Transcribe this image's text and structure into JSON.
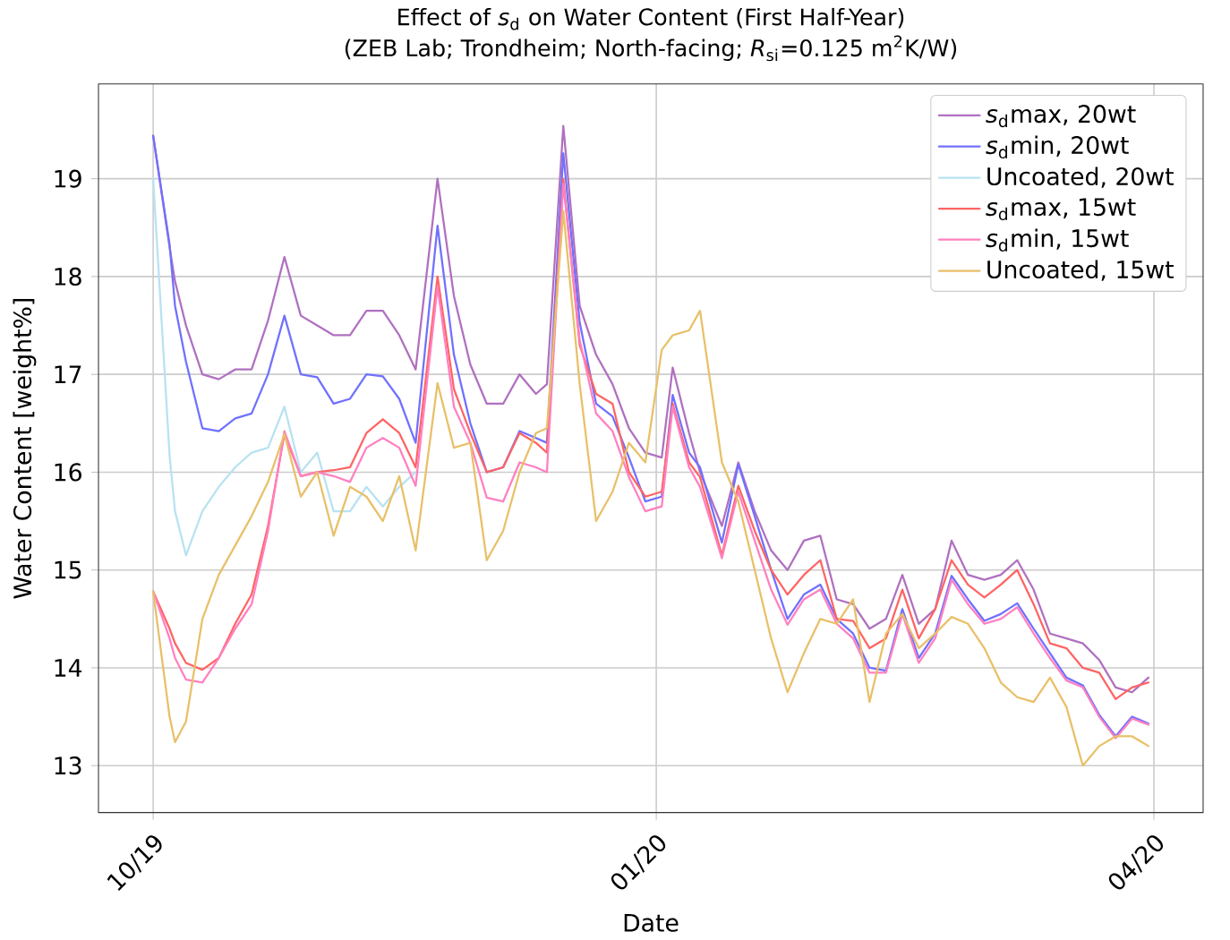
{
  "chart_data": {
    "type": "line",
    "title": "Effect of *s*$_{d}$ on Water Content (First Half-Year)",
    "subtitle": "(ZEB Lab; Trondheim; North-facing; *R*$_{si}$=0.125 m$^{2}$K/W)",
    "xlabel": "Date",
    "ylabel": "Water Content [weight%]",
    "x": [
      "2019-10-01",
      "2019-10-04",
      "2019-10-05",
      "2019-10-07",
      "2019-10-10",
      "2019-10-13",
      "2019-10-16",
      "2019-10-19",
      "2019-10-22",
      "2019-10-25",
      "2019-10-28",
      "2019-10-31",
      "2019-11-03",
      "2019-11-06",
      "2019-11-09",
      "2019-11-12",
      "2019-11-15",
      "2019-11-18",
      "2019-11-22",
      "2019-11-25",
      "2019-11-28",
      "2019-12-01",
      "2019-12-04",
      "2019-12-07",
      "2019-12-10",
      "2019-12-12",
      "2019-12-15",
      "2019-12-18",
      "2019-12-21",
      "2019-12-24",
      "2019-12-27",
      "2019-12-30",
      "2020-01-02",
      "2020-01-04",
      "2020-01-07",
      "2020-01-09",
      "2020-01-13",
      "2020-01-16",
      "2020-01-19",
      "2020-01-22",
      "2020-01-25",
      "2020-01-28",
      "2020-01-31",
      "2020-02-03",
      "2020-02-06",
      "2020-02-09",
      "2020-02-12",
      "2020-02-15",
      "2020-02-18",
      "2020-02-21",
      "2020-02-24",
      "2020-02-27",
      "2020-03-01",
      "2020-03-04",
      "2020-03-07",
      "2020-03-10",
      "2020-03-13",
      "2020-03-16",
      "2020-03-19",
      "2020-03-22",
      "2020-03-25",
      "2020-03-28",
      "2020-03-31"
    ],
    "series": [
      {
        "name": "*s*$_{d}$max, 20wt",
        "color": "#b070c0",
        "values": [
          19.44,
          18.3,
          17.95,
          17.5,
          17.0,
          16.95,
          17.05,
          17.05,
          17.55,
          18.2,
          17.6,
          17.5,
          17.4,
          17.4,
          17.65,
          17.65,
          17.4,
          17.05,
          19.0,
          17.8,
          17.1,
          16.7,
          16.7,
          17.0,
          16.8,
          16.9,
          19.54,
          17.7,
          17.2,
          16.9,
          16.45,
          16.2,
          16.15,
          17.07,
          16.4,
          16.0,
          15.45,
          16.1,
          15.6,
          15.2,
          15.0,
          15.3,
          15.35,
          14.7,
          14.65,
          14.4,
          14.5,
          14.95,
          14.45,
          14.6,
          15.3,
          14.95,
          14.9,
          14.95,
          15.1,
          14.8,
          14.35,
          14.3,
          14.25,
          14.08,
          13.8,
          13.75,
          13.9
        ]
      },
      {
        "name": "*s*$_{d}$min, 20wt",
        "color": "#7070ff",
        "values": [
          19.44,
          18.33,
          17.7,
          17.13,
          16.45,
          16.42,
          16.55,
          16.6,
          17.0,
          17.6,
          17.0,
          16.97,
          16.7,
          16.75,
          17.0,
          16.98,
          16.75,
          16.3,
          18.52,
          17.2,
          16.5,
          16.0,
          16.05,
          16.42,
          16.35,
          16.3,
          19.26,
          17.53,
          16.7,
          16.57,
          16.15,
          15.7,
          15.75,
          16.79,
          16.2,
          16.05,
          15.28,
          16.08,
          15.55,
          15.0,
          14.5,
          14.75,
          14.85,
          14.5,
          14.35,
          14.0,
          13.97,
          14.6,
          14.1,
          14.35,
          14.94,
          14.7,
          14.48,
          14.55,
          14.66,
          14.4,
          14.15,
          13.9,
          13.82,
          13.52,
          13.3,
          13.5,
          13.43
        ]
      },
      {
        "name": "Uncoated, 20wt",
        "color": "#b8e2f2",
        "values": [
          19.0,
          16.17,
          15.6,
          15.15,
          15.6,
          15.85,
          16.05,
          16.2,
          16.25,
          16.67,
          16.0,
          16.2,
          15.6,
          15.6,
          15.85,
          15.65,
          15.85,
          16.0,
          null,
          null,
          null,
          null,
          null,
          null,
          null,
          null,
          null,
          null,
          null,
          null,
          null,
          null,
          null,
          null,
          null,
          null,
          null,
          null,
          null,
          null,
          null,
          null,
          null,
          null,
          null,
          null,
          null,
          null,
          null,
          null,
          null,
          null,
          null,
          null,
          null,
          null,
          null,
          null,
          null,
          null,
          null,
          null,
          null
        ]
      },
      {
        "name": "*s*$_{d}$max, 15wt",
        "color": "#ff6464",
        "values": [
          14.78,
          14.4,
          14.25,
          14.05,
          13.98,
          14.1,
          14.45,
          14.75,
          15.45,
          16.39,
          15.96,
          16.0,
          16.02,
          16.05,
          16.4,
          16.54,
          16.4,
          16.05,
          18.0,
          16.85,
          16.4,
          16.0,
          16.05,
          16.4,
          16.3,
          16.2,
          19.0,
          17.3,
          16.8,
          16.7,
          16.0,
          15.75,
          15.8,
          16.7,
          16.1,
          15.95,
          15.15,
          15.86,
          15.4,
          15.0,
          14.75,
          14.95,
          15.1,
          14.5,
          14.48,
          14.2,
          14.3,
          14.8,
          14.3,
          14.6,
          15.1,
          14.85,
          14.72,
          14.85,
          15.0,
          14.65,
          14.25,
          14.2,
          14.0,
          13.95,
          13.68,
          13.8,
          13.85
        ]
      },
      {
        "name": "*s*$_{d}$min, 15wt",
        "color": "#ff80c0",
        "values": [
          14.78,
          14.3,
          14.1,
          13.88,
          13.85,
          14.1,
          14.4,
          14.65,
          15.4,
          16.42,
          15.96,
          16.0,
          15.96,
          15.9,
          16.25,
          16.35,
          16.25,
          15.86,
          17.9,
          16.67,
          16.3,
          15.74,
          15.7,
          16.1,
          16.05,
          16.0,
          18.95,
          17.35,
          16.6,
          16.42,
          15.95,
          15.6,
          15.65,
          16.67,
          16.05,
          15.85,
          15.12,
          15.8,
          15.3,
          14.8,
          14.44,
          14.7,
          14.8,
          14.45,
          14.3,
          13.95,
          13.95,
          14.55,
          14.05,
          14.3,
          14.9,
          14.65,
          14.45,
          14.5,
          14.62,
          14.35,
          14.1,
          13.87,
          13.8,
          13.5,
          13.28,
          13.48,
          13.42
        ]
      },
      {
        "name": "Uncoated, 15wt",
        "color": "#e8c068",
        "values": [
          14.78,
          13.5,
          13.24,
          13.45,
          14.5,
          14.95,
          15.25,
          15.55,
          15.9,
          16.39,
          15.75,
          16.0,
          15.35,
          15.85,
          15.75,
          15.5,
          15.96,
          15.2,
          16.91,
          16.25,
          16.3,
          15.1,
          15.4,
          16.0,
          16.4,
          16.45,
          18.67,
          16.9,
          15.5,
          15.8,
          16.3,
          16.1,
          17.25,
          17.4,
          17.45,
          17.65,
          16.1,
          15.7,
          15.0,
          14.3,
          13.75,
          14.15,
          14.5,
          14.45,
          14.7,
          13.65,
          14.35,
          14.55,
          14.2,
          14.35,
          14.52,
          14.45,
          14.2,
          13.85,
          13.7,
          13.65,
          13.9,
          13.6,
          13.0,
          13.2,
          13.3,
          13.3,
          13.2
        ]
      }
    ],
    "xlim": [
      "2019-09-21",
      "2020-04-10"
    ],
    "ylim": [
      12.52,
      19.97
    ],
    "xticks": [
      {
        "value": "2019-10-01",
        "label": "10/19"
      },
      {
        "value": "2020-01-01",
        "label": "01/20"
      },
      {
        "value": "2020-04-01",
        "label": "04/20"
      }
    ],
    "yticks": [
      13,
      14,
      15,
      16,
      17,
      18,
      19
    ],
    "grid": true,
    "legend": "top right"
  }
}
